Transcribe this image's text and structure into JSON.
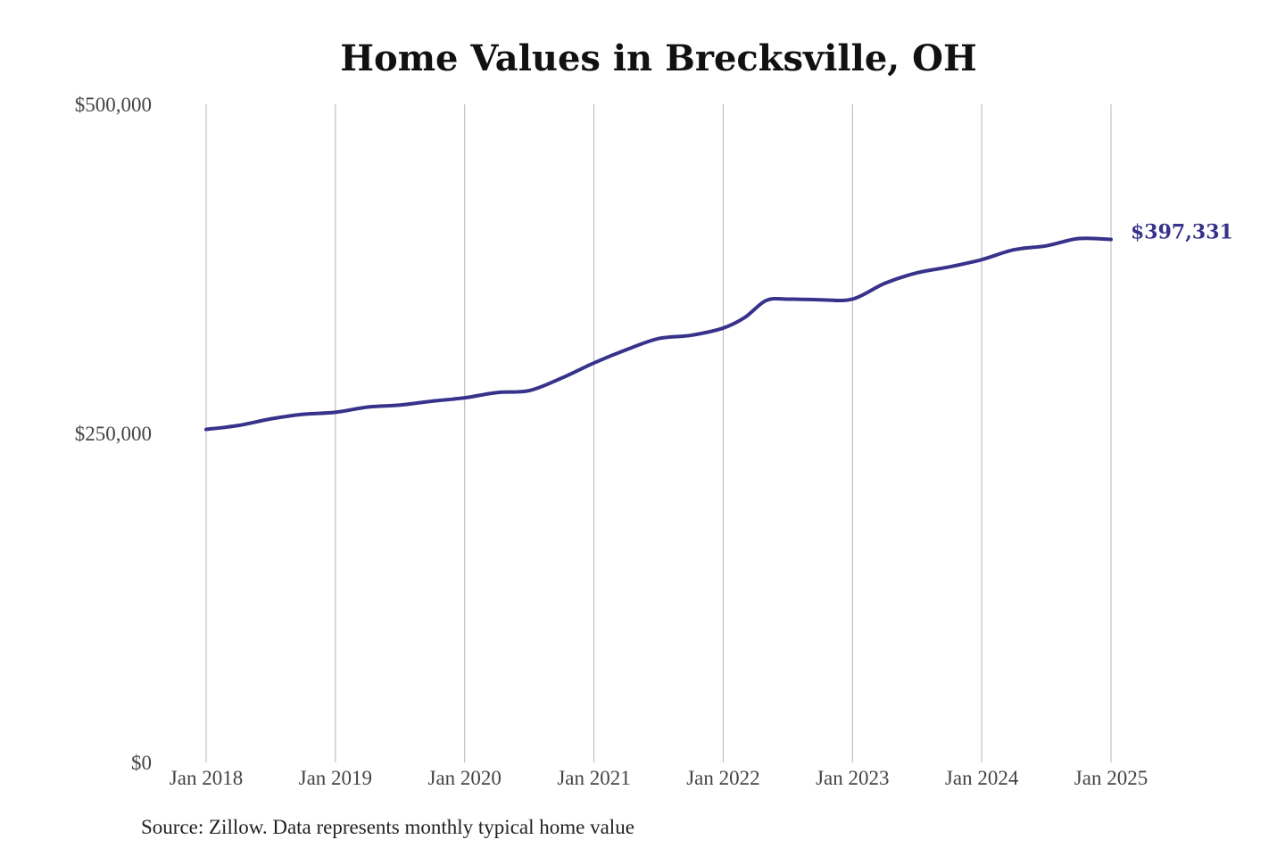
{
  "source": "Source: Zillow. Data represents monthly typical home value",
  "colors": {
    "line": "#37328a",
    "grid": "#b4b4b4",
    "tick_text": "#444444",
    "title": "#111111"
  },
  "chart_data": {
    "type": "line",
    "title": "Home Values in Brecksville, OH",
    "xlabel": "",
    "ylabel": "",
    "ylim": [
      0,
      500000
    ],
    "y_ticks": [
      {
        "value": 0,
        "label": "$0"
      },
      {
        "value": 250000,
        "label": "$250,000"
      },
      {
        "value": 500000,
        "label": "$500,000"
      }
    ],
    "x_ticks": [
      {
        "value": "2018-01",
        "label": "Jan 2018"
      },
      {
        "value": "2019-01",
        "label": "Jan 2019"
      },
      {
        "value": "2020-01",
        "label": "Jan 2020"
      },
      {
        "value": "2021-01",
        "label": "Jan 2021"
      },
      {
        "value": "2022-01",
        "label": "Jan 2022"
      },
      {
        "value": "2023-01",
        "label": "Jan 2023"
      },
      {
        "value": "2024-01",
        "label": "Jan 2024"
      },
      {
        "value": "2025-01",
        "label": "Jan 2025"
      }
    ],
    "grid": "vertical",
    "end_label": "$397,331",
    "series": [
      {
        "x": [
          "2018-01",
          "2018-04",
          "2018-07",
          "2018-10",
          "2019-01",
          "2019-04",
          "2019-07",
          "2019-10",
          "2020-01",
          "2020-04",
          "2020-07",
          "2020-10",
          "2021-01",
          "2021-04",
          "2021-07",
          "2021-10",
          "2022-01",
          "2022-03",
          "2022-05",
          "2022-07",
          "2022-10",
          "2023-01",
          "2023-04",
          "2023-07",
          "2023-10",
          "2024-01",
          "2024-04",
          "2024-07",
          "2024-10",
          "2025-01"
        ],
        "values": [
          253000,
          256000,
          261000,
          264500,
          266000,
          270000,
          271500,
          274500,
          277000,
          281000,
          282500,
          292000,
          303500,
          313500,
          322000,
          324500,
          330000,
          338000,
          351000,
          352000,
          351500,
          352000,
          364000,
          372000,
          376500,
          382000,
          389500,
          392500,
          398000,
          397331
        ]
      }
    ]
  }
}
